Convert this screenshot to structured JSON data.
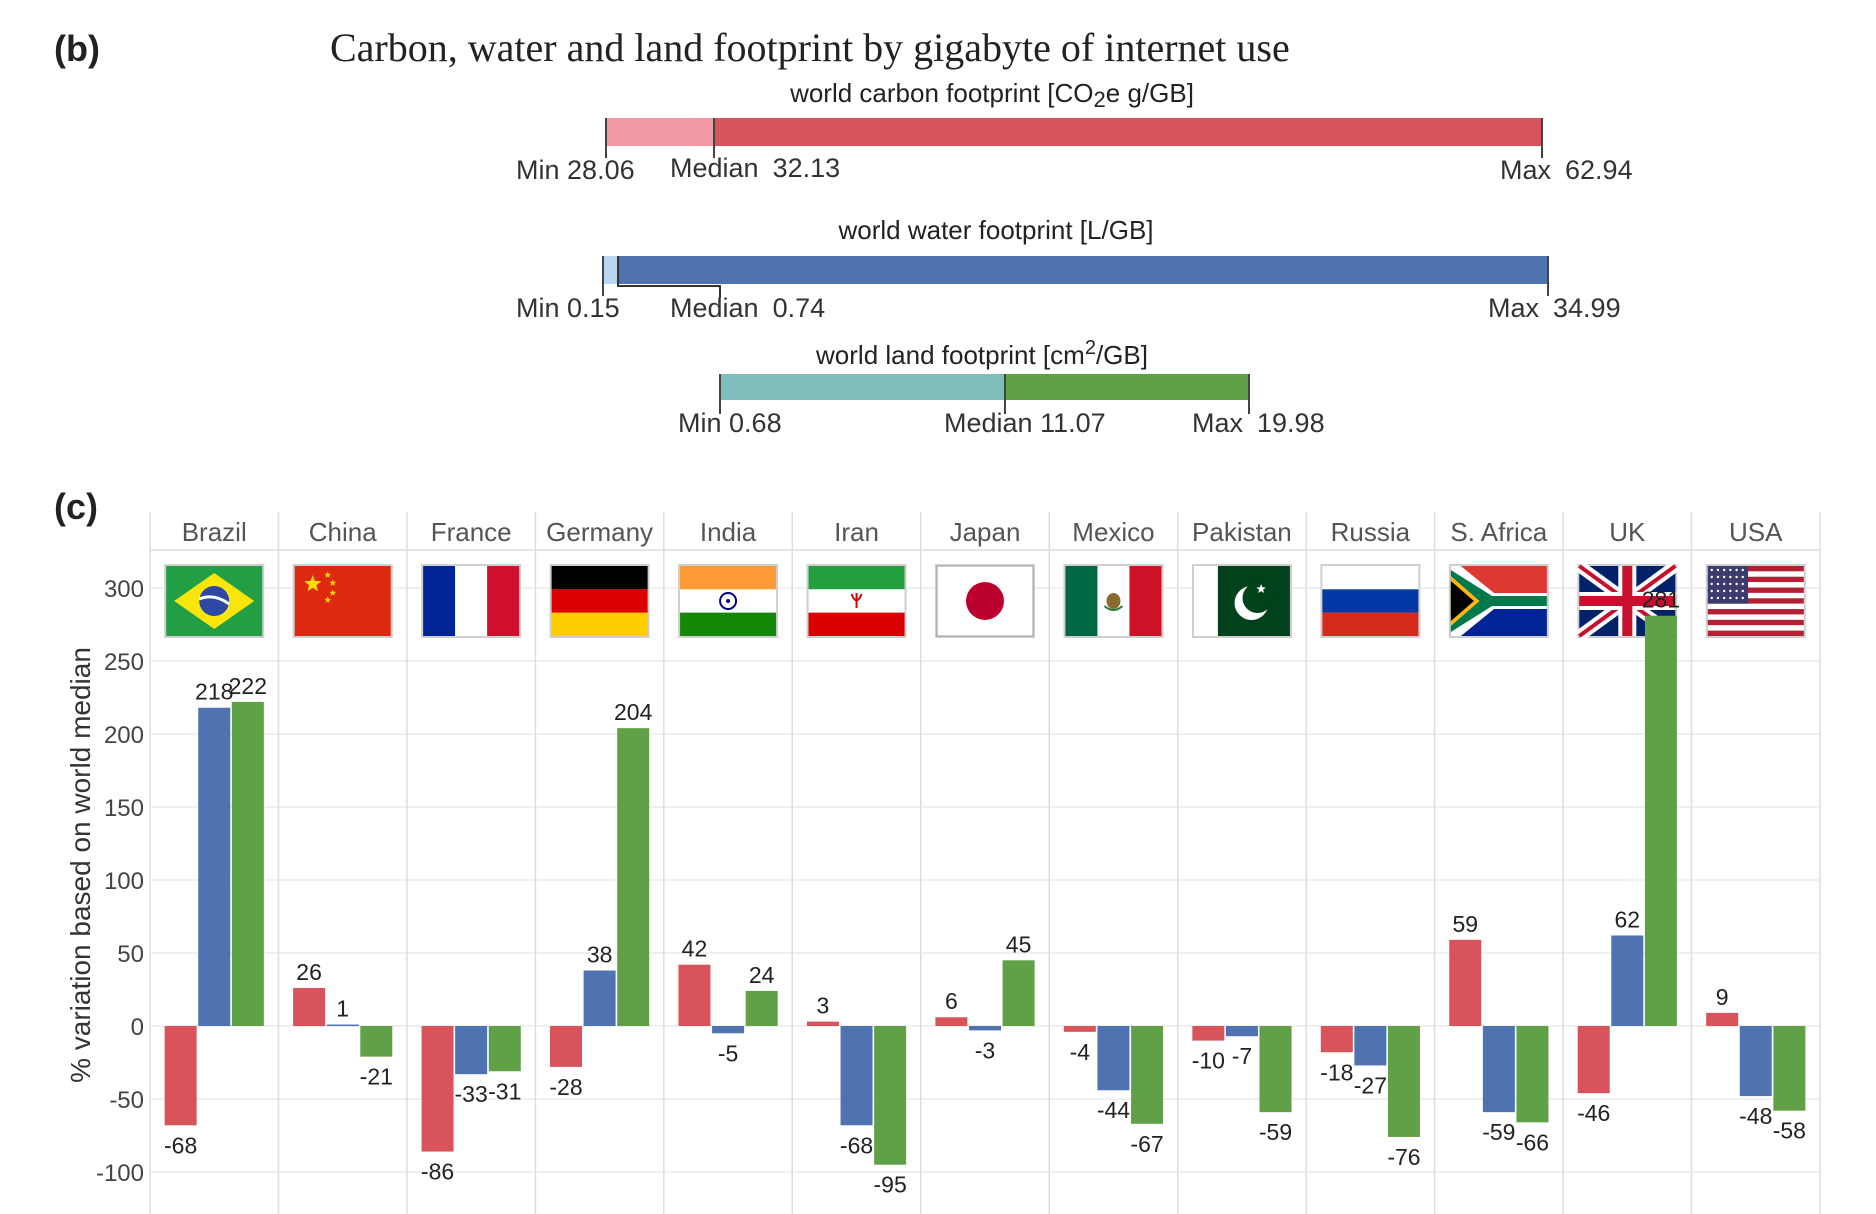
{
  "panel_b": {
    "label": "(b)",
    "title": "Carbon, water and land footprint by gigabyte of  internet use",
    "footprints": [
      {
        "key": "carbon",
        "title_pre": "world carbon footprint [CO",
        "title_sub": "2",
        "title_post": "e g/GB]",
        "min_label": "Min",
        "min": "28.06",
        "median_label": "Median",
        "median": "32.13",
        "max_label": "Max",
        "max": "62.94",
        "light_color": "#f29aa3",
        "color": "#d9545a"
      },
      {
        "key": "water",
        "title_pre": "world water footprint [L/GB]",
        "title_sub": "",
        "title_post": "",
        "min_label": "Min",
        "min": "0.15",
        "median_label": "Median",
        "median": "0.74",
        "max_label": "Max",
        "max": "34.99",
        "light_color": "#b9d6f2",
        "color": "#4f72b0"
      },
      {
        "key": "land",
        "title_pre": "world land footprint [cm",
        "title_sup": "2",
        "title_post": "/GB]",
        "min_label": "Min",
        "min": "0.68",
        "median_label": "Median",
        "median": "11.07",
        "max_label": "Max",
        "max": "19.98",
        "light_color": "#7fbcbc",
        "color": "#60a046"
      }
    ]
  },
  "panel_c": {
    "label": "(c)"
  },
  "chart_data": {
    "type": "bar",
    "ylabel": "% variation based on world median",
    "ylim": [
      -135,
      325
    ],
    "yticks": [
      300,
      250,
      200,
      150,
      100,
      50,
      0,
      -50,
      -100
    ],
    "grid": true,
    "categories": [
      "Brazil",
      "China",
      "France",
      "Germany",
      "India",
      "Iran",
      "Japan",
      "Mexico",
      "Pakistan",
      "Russia",
      "S. Africa",
      "UK",
      "USA"
    ],
    "series": [
      {
        "color": "#d9545a",
        "values": [
          -68,
          26,
          -86,
          -28,
          42,
          3,
          6,
          -4,
          -10,
          -18,
          59,
          -46,
          9
        ]
      },
      {
        "color": "#4f72b0",
        "values": [
          218,
          1,
          -33,
          38,
          -5,
          -68,
          -3,
          -44,
          -7,
          -27,
          -59,
          62,
          -48
        ]
      },
      {
        "color": "#60a046",
        "values": [
          222,
          -21,
          -31,
          204,
          24,
          -95,
          45,
          -67,
          -59,
          -76,
          -66,
          281,
          -58
        ]
      }
    ],
    "data_labels": [
      [
        "-68",
        "218",
        "222"
      ],
      [
        "26",
        "1",
        "-21"
      ],
      [
        "-86",
        "-33",
        "-31"
      ],
      [
        "-28",
        "38",
        "204"
      ],
      [
        "42",
        "-5",
        "24"
      ],
      [
        "3",
        "-68",
        "-95"
      ],
      [
        "6",
        "-3",
        "45"
      ],
      [
        "-4",
        "-44",
        "-67"
      ],
      [
        "-10",
        "-7",
        "-59"
      ],
      [
        "-18",
        "-27",
        "-76"
      ],
      [
        "59",
        "-59",
        "-66"
      ],
      [
        "-46",
        "62",
        "281"
      ],
      [
        "9",
        "-48",
        "-58"
      ]
    ],
    "flags": [
      "brazil-flag",
      "china-flag",
      "france-flag",
      "germany-flag",
      "india-flag",
      "iran-flag",
      "japan-flag",
      "mexico-flag",
      "pakistan-flag",
      "russia-flag",
      "south-africa-flag",
      "uk-flag",
      "usa-flag"
    ]
  }
}
